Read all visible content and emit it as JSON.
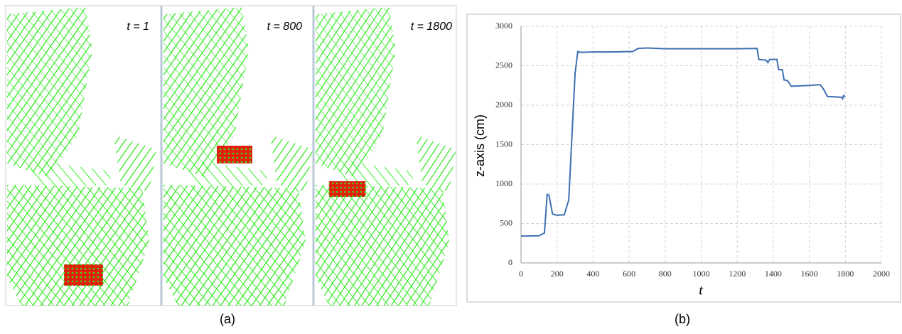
{
  "panel_a": {
    "frames": [
      "t = 1",
      "t = 800",
      "t = 1800"
    ],
    "caption": "(a)"
  },
  "chart_data": {
    "type": "line",
    "caption": "(b)",
    "x_label": "t",
    "y_label": "z-axis (cm)",
    "color": "#3e6fb0",
    "x": [
      0,
      100,
      130,
      145,
      155,
      175,
      200,
      240,
      265,
      300,
      315,
      330,
      400,
      500,
      620,
      650,
      700,
      800,
      1000,
      1200,
      1310,
      1320,
      1360,
      1370,
      1380,
      1420,
      1430,
      1450,
      1460,
      1480,
      1500,
      1600,
      1660,
      1680,
      1700,
      1780,
      1785,
      1790,
      1800
    ],
    "values": [
      340,
      345,
      380,
      870,
      860,
      620,
      605,
      610,
      800,
      2400,
      2680,
      2670,
      2675,
      2675,
      2680,
      2720,
      2725,
      2715,
      2715,
      2715,
      2720,
      2580,
      2570,
      2540,
      2580,
      2580,
      2450,
      2450,
      2320,
      2310,
      2240,
      2250,
      2260,
      2200,
      2110,
      2100,
      2080,
      2120,
      2110
    ],
    "xlim": [
      0,
      2000
    ],
    "xticks": [
      0,
      200,
      400,
      600,
      800,
      1000,
      1200,
      1400,
      1600,
      1800,
      2000
    ],
    "ylim": [
      0,
      3000
    ],
    "yticks": [
      0,
      500,
      1000,
      1500,
      2000,
      2500,
      3000
    ],
    "grid": true
  }
}
